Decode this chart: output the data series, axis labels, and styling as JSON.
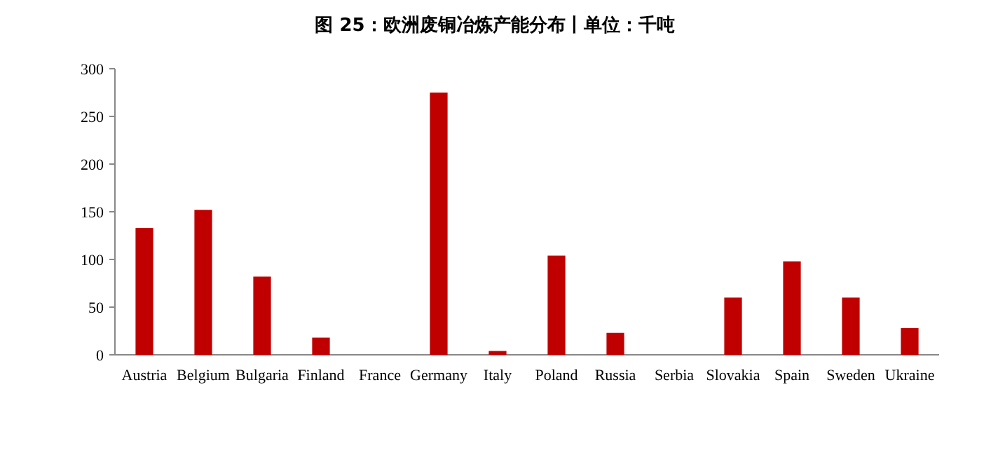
{
  "chart_data": {
    "type": "bar",
    "title": "图 25：欧洲废铜冶炼产能分布丨单位：千吨",
    "categories": [
      "Austria",
      "Belgium",
      "Bulgaria",
      "Finland",
      "France",
      "Germany",
      "Italy",
      "Poland",
      "Russia",
      "Serbia",
      "Slovakia",
      "Spain",
      "Sweden",
      "Ukraine"
    ],
    "values": [
      133,
      152,
      82,
      18,
      0,
      275,
      4,
      104,
      23,
      0,
      60,
      98,
      60,
      28
    ],
    "color": "#c00000",
    "ylim": [
      0,
      300
    ],
    "yticks": [
      0,
      50,
      100,
      150,
      200,
      250,
      300
    ],
    "grid": false
  }
}
